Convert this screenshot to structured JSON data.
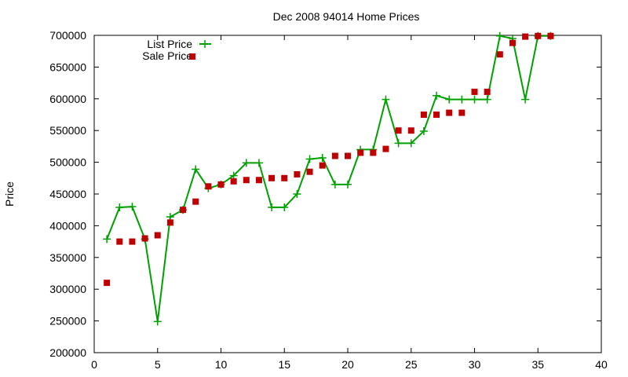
{
  "chart_data": {
    "type": "line",
    "title": "Dec 2008 94014 Home Prices",
    "xlabel": "",
    "ylabel": "Price",
    "xlim": [
      0,
      40
    ],
    "ylim": [
      200000,
      700000
    ],
    "x_ticks": [
      0,
      5,
      10,
      15,
      20,
      25,
      30,
      35,
      40
    ],
    "y_ticks": [
      200000,
      250000,
      300000,
      350000,
      400000,
      450000,
      500000,
      550000,
      600000,
      650000,
      700000
    ],
    "x_tick_labels": [
      "0",
      "5",
      "10",
      "15",
      "20",
      "25",
      "30",
      "35",
      "40"
    ],
    "y_tick_labels": [
      "200000",
      "250000",
      "300000",
      "350000",
      "400000",
      "450000",
      "500000",
      "550000",
      "600000",
      "650000",
      "700000"
    ],
    "grid": false,
    "legend_position": "top-left",
    "series": [
      {
        "name": "List Price",
        "style": "linespoints",
        "marker": "plus",
        "color": "#00a000",
        "x": [
          1,
          2,
          3,
          4,
          5,
          6,
          7,
          8,
          9,
          10,
          11,
          12,
          13,
          14,
          15,
          16,
          17,
          18,
          19,
          20,
          21,
          22,
          23,
          24,
          25,
          26,
          27,
          28,
          29,
          30,
          31,
          32,
          33,
          34,
          35,
          36
        ],
        "y": [
          379000,
          429000,
          430000,
          379000,
          249000,
          414000,
          425000,
          489000,
          459000,
          465000,
          479000,
          499000,
          499000,
          429000,
          429000,
          450000,
          505000,
          507000,
          465000,
          465000,
          520000,
          520000,
          599000,
          530000,
          530000,
          549000,
          605000,
          599000,
          599000,
          599000,
          599000,
          699000,
          695000,
          599000,
          699000,
          699000
        ]
      },
      {
        "name": "Sale Price",
        "style": "points",
        "marker": "square",
        "color": "#c00000",
        "x": [
          1,
          2,
          3,
          4,
          5,
          6,
          7,
          8,
          9,
          10,
          11,
          12,
          13,
          14,
          15,
          16,
          17,
          18,
          19,
          20,
          21,
          22,
          23,
          24,
          25,
          26,
          27,
          28,
          29,
          30,
          31,
          32,
          33,
          34,
          35,
          36
        ],
        "y": [
          310000,
          375000,
          375000,
          380000,
          385000,
          405000,
          425000,
          438000,
          462000,
          465000,
          470000,
          472000,
          472000,
          475000,
          475000,
          481000,
          485000,
          495000,
          510000,
          510000,
          515000,
          515000,
          521000,
          550000,
          550000,
          575000,
          575000,
          578000,
          578000,
          611000,
          611000,
          670000,
          688000,
          698000,
          699000,
          699000
        ]
      }
    ]
  }
}
